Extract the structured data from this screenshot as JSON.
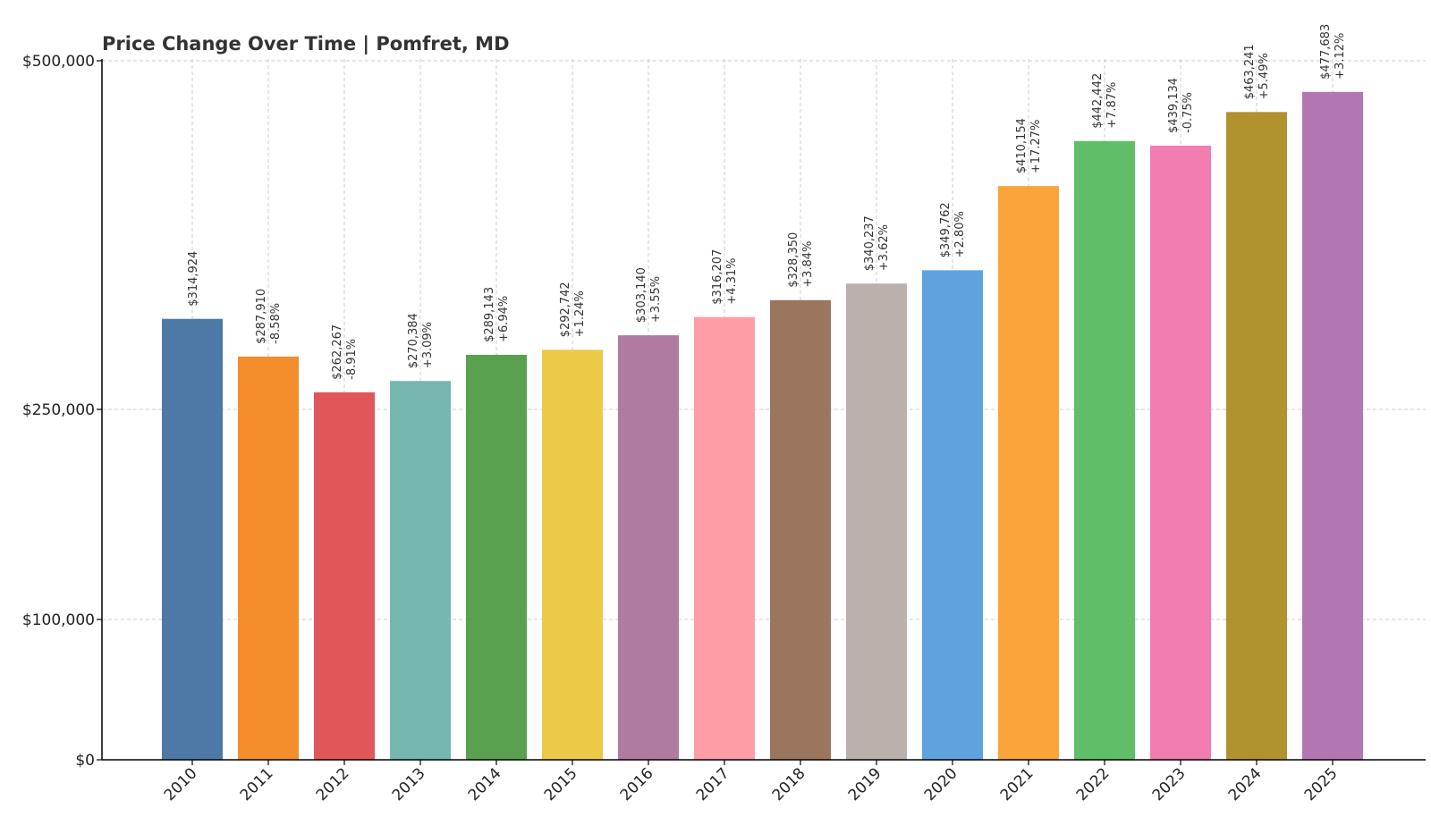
{
  "chart_data": {
    "type": "bar",
    "title": "Price Change Over Time | Pomfret, MD",
    "xlabel": "",
    "ylabel": "",
    "categories": [
      "2010",
      "2011",
      "2012",
      "2013",
      "2014",
      "2015",
      "2016",
      "2017",
      "2018",
      "2019",
      "2020",
      "2021",
      "2022",
      "2023",
      "2024",
      "2025"
    ],
    "values": [
      314924,
      287910,
      262267,
      270384,
      289143,
      292742,
      303140,
      316207,
      328350,
      340237,
      349762,
      410154,
      442442,
      439134,
      463241,
      477683
    ],
    "value_labels": [
      "$314,924",
      "$287,910",
      "$262,267",
      "$270,384",
      "$289,143",
      "$292,742",
      "$303,140",
      "$316,207",
      "$328,350",
      "$340,237",
      "$349,762",
      "$410,154",
      "$442,442",
      "$439,134",
      "$463,241",
      "$477,683"
    ],
    "change_labels": [
      "",
      "-8.58%",
      "-8.91%",
      "+3.09%",
      "+6.94%",
      "+1.24%",
      "+3.55%",
      "+4.31%",
      "+3.84%",
      "+3.62%",
      "+2.80%",
      "+17.27%",
      "+7.87%",
      "-0.75%",
      "+5.49%",
      "+3.12%"
    ],
    "colors": [
      "#4e79a7",
      "#f28e2b",
      "#e15759",
      "#76b7b2",
      "#59a14f",
      "#edc948",
      "#b07aa1",
      "#ff9da7",
      "#9c755f",
      "#bab0ac",
      "#5fa2dd",
      "#faa43a",
      "#60bd68",
      "#f17cb0",
      "#b2912f",
      "#b276b2"
    ],
    "yticks": [
      0,
      100000,
      250000,
      500000
    ],
    "ytick_labels": [
      "$0",
      "$100,000",
      "$250,000",
      "$500,000"
    ],
    "ylim": [
      0,
      500000
    ],
    "grid": true,
    "legend": "none"
  }
}
